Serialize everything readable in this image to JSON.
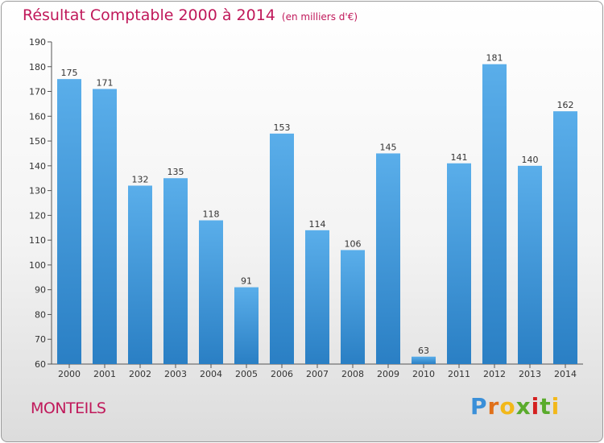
{
  "title": "Résultat Comptable 2000 à 2014",
  "subtitle": "(en milliers d'€)",
  "place": "MONTEILS",
  "logo": {
    "letters": [
      "P",
      "r",
      "o",
      "x",
      "i",
      "t",
      "i"
    ]
  },
  "colors": {
    "title": "#c0185a",
    "bar_top": "#5aaeea",
    "bar_bottom": "#2a7fc4",
    "axis": "#555555"
  },
  "chart_data": {
    "type": "bar",
    "categories": [
      "2000",
      "2001",
      "2002",
      "2003",
      "2004",
      "2005",
      "2006",
      "2007",
      "2008",
      "2009",
      "2010",
      "2011",
      "2012",
      "2013",
      "2014"
    ],
    "values": [
      175,
      171,
      132,
      135,
      118,
      91,
      153,
      114,
      106,
      145,
      63,
      141,
      181,
      140,
      162
    ],
    "ylim": [
      60,
      190
    ],
    "yticks": [
      60,
      70,
      80,
      90,
      100,
      110,
      120,
      130,
      140,
      150,
      160,
      170,
      180,
      190
    ],
    "grid": false,
    "title": "Résultat Comptable 2000 à 2014",
    "xlabel": "",
    "ylabel": ""
  }
}
